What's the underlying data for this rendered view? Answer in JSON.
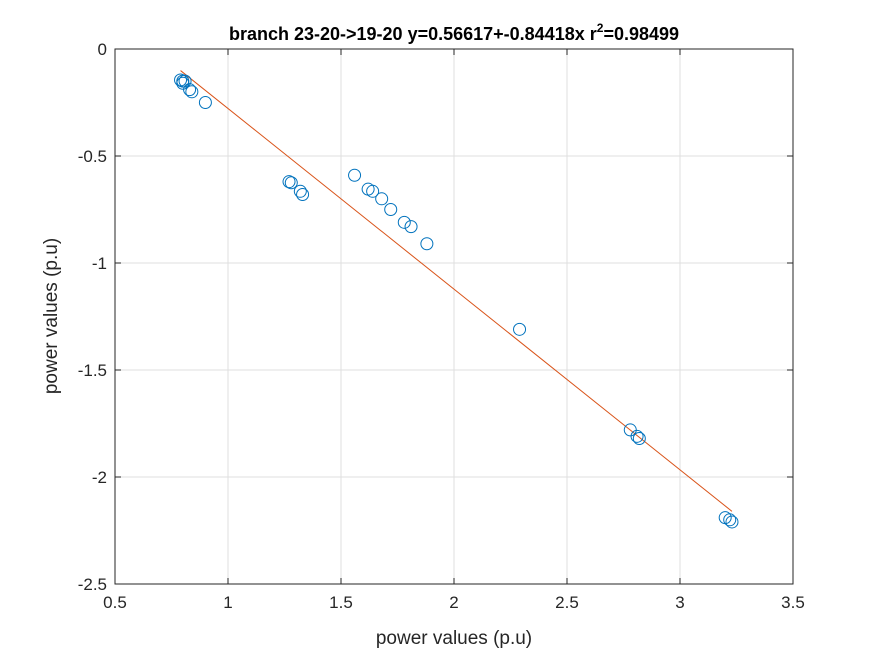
{
  "chart_data": {
    "type": "scatter",
    "title": {
      "main": "branch 23-20->19-20 y=0.56617+-0.84418x r",
      "sup": "2",
      "tail": "=0.98499"
    },
    "xlabel": "power values (p.u)",
    "ylabel": "power values (p.u)",
    "xlim": [
      0.5,
      3.5
    ],
    "ylim": [
      -2.5,
      0
    ],
    "xticks": [
      0.5,
      1,
      1.5,
      2,
      2.5,
      3,
      3.5
    ],
    "xtick_labels": [
      "0.5",
      "1",
      "1.5",
      "2",
      "2.5",
      "3",
      "3.5"
    ],
    "yticks": [
      0,
      -0.5,
      -1,
      -1.5,
      -2,
      -2.5
    ],
    "ytick_labels": [
      "0",
      "-0.5",
      "-1",
      "-1.5",
      "-2",
      "-2.5"
    ],
    "grid": true,
    "series": [
      {
        "kind": "scatter",
        "marker": "circle",
        "color": "#0072BD",
        "points": [
          [
            0.79,
            -0.145
          ],
          [
            0.8,
            -0.15
          ],
          [
            0.8,
            -0.16
          ],
          [
            0.81,
            -0.15
          ],
          [
            0.83,
            -0.19
          ],
          [
            0.84,
            -0.2
          ],
          [
            0.9,
            -0.25
          ],
          [
            1.27,
            -0.62
          ],
          [
            1.28,
            -0.625
          ],
          [
            1.32,
            -0.665
          ],
          [
            1.33,
            -0.68
          ],
          [
            1.56,
            -0.59
          ],
          [
            1.62,
            -0.655
          ],
          [
            1.64,
            -0.665
          ],
          [
            1.68,
            -0.7
          ],
          [
            1.72,
            -0.75
          ],
          [
            1.78,
            -0.81
          ],
          [
            1.81,
            -0.83
          ],
          [
            1.88,
            -0.91
          ],
          [
            2.29,
            -1.31
          ],
          [
            2.78,
            -1.78
          ],
          [
            2.81,
            -1.81
          ],
          [
            2.82,
            -1.82
          ],
          [
            3.2,
            -2.19
          ],
          [
            3.22,
            -2.2
          ],
          [
            3.23,
            -2.21
          ]
        ]
      },
      {
        "kind": "line",
        "color": "#D95319",
        "intercept": 0.56617,
        "slope": -0.84418,
        "x_range": [
          0.79,
          3.23
        ]
      }
    ]
  }
}
